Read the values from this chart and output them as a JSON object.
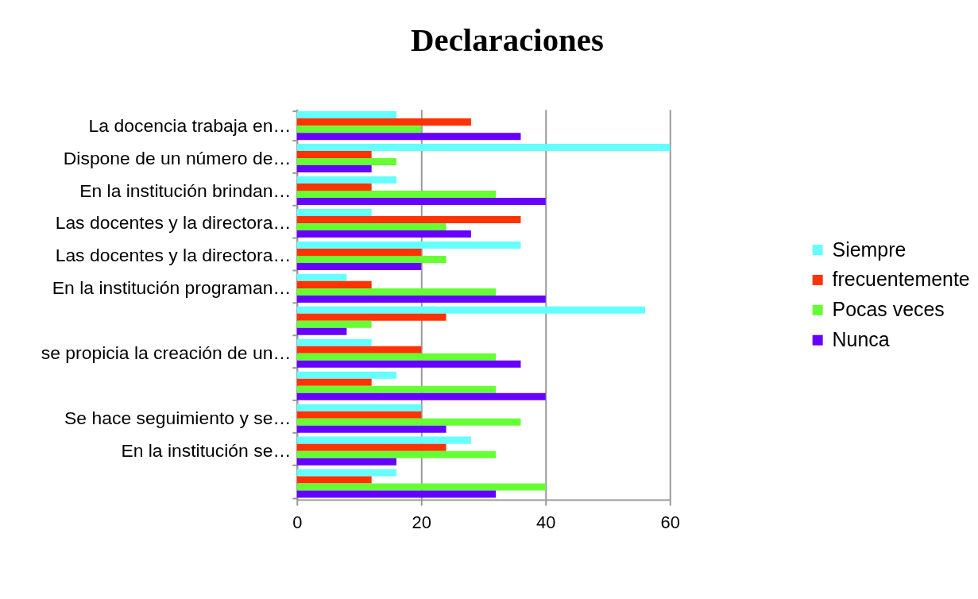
{
  "chart_data": {
    "type": "bar",
    "orientation": "horizontal",
    "title": "Declaraciones",
    "categories": [
      "La docencia trabaja en…",
      "Dispone de un número de…",
      "En la institución brindan…",
      "Las docentes y la directora…",
      "Las docentes y la directora…",
      "En la institución programan…",
      null,
      "se propicia la creación de un…",
      null,
      "Se hace seguimiento y se…",
      "En la institución se…",
      null
    ],
    "series": [
      {
        "name": "Siempre",
        "color": "#66ffff",
        "values": [
          16,
          60,
          16,
          12,
          36,
          8,
          56,
          12,
          16,
          20,
          28,
          16
        ]
      },
      {
        "name": "frecuentemente",
        "color": "#ff3300",
        "values": [
          28,
          12,
          12,
          36,
          20,
          12,
          24,
          20,
          12,
          20,
          24,
          12
        ]
      },
      {
        "name": "Pocas veces",
        "color": "#66ff33",
        "values": [
          20,
          16,
          32,
          24,
          24,
          32,
          12,
          32,
          32,
          36,
          32,
          40
        ]
      },
      {
        "name": "Nunca",
        "color": "#6600ff",
        "values": [
          36,
          12,
          40,
          28,
          20,
          40,
          8,
          36,
          40,
          24,
          16,
          32
        ]
      }
    ],
    "xlim": [
      0,
      60
    ],
    "xticks": [
      0,
      20,
      40,
      60
    ],
    "grid": "x",
    "legend": "right"
  }
}
